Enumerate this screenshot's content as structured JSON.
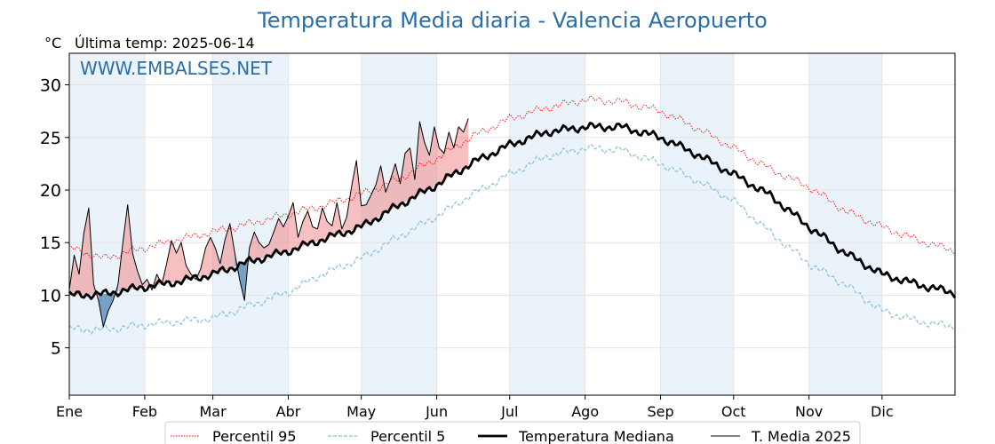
{
  "chart_data": {
    "type": "line",
    "title": "Temperatura Media diaria - Valencia Aeropuerto",
    "ylabel": "°C",
    "subtitle": "Última temp: 2025-06-14",
    "watermark": "WWW.EMBALSES.NET",
    "xlim": [
      1,
      365
    ],
    "ylim": [
      0.5,
      33
    ],
    "yticks": [
      5,
      10,
      15,
      20,
      25,
      30
    ],
    "grid": true,
    "legend_position": "bottom-center",
    "months": [
      "Ene",
      "Feb",
      "Mar",
      "Abr",
      "May",
      "Jun",
      "Jul",
      "Ago",
      "Sep",
      "Oct",
      "Nov",
      "Dic"
    ],
    "month_start_days": [
      1,
      32,
      60,
      91,
      121,
      152,
      182,
      213,
      244,
      274,
      305,
      335
    ],
    "colors": {
      "p95": "#ff0000",
      "p5": "#87bfdc",
      "median": "#000000",
      "media2025": "#000000",
      "above_fill": "#f08080",
      "below_fill": "#4f83b1",
      "band": "#eaf2fa",
      "title": "#2b6ea6"
    },
    "series": [
      {
        "name": "Percentil 95",
        "style": "dotted",
        "days": [
          1,
          15,
          32,
          46,
          60,
          75,
          91,
          105,
          121,
          136,
          152,
          166,
          182,
          197,
          213,
          228,
          244,
          258,
          274,
          289,
          305,
          320,
          335,
          350,
          365
        ],
        "values": [
          14.5,
          13.5,
          14.5,
          15.3,
          16.0,
          16.8,
          17.7,
          18.5,
          19.6,
          21.0,
          23.0,
          25.0,
          26.8,
          27.8,
          28.6,
          28.4,
          27.5,
          26.0,
          24.0,
          22.0,
          20.3,
          18.0,
          16.5,
          15.2,
          14.2
        ]
      },
      {
        "name": "Percentil 5",
        "style": "dashed",
        "days": [
          1,
          15,
          32,
          46,
          60,
          75,
          91,
          105,
          121,
          136,
          152,
          166,
          182,
          197,
          213,
          228,
          244,
          258,
          274,
          289,
          305,
          320,
          335,
          350,
          365
        ],
        "values": [
          6.8,
          6.7,
          7.2,
          7.5,
          7.8,
          9.0,
          10.3,
          12.0,
          13.5,
          15.5,
          17.5,
          19.5,
          21.5,
          23.2,
          24.0,
          23.8,
          22.5,
          21.0,
          19.0,
          16.0,
          13.0,
          11.0,
          8.5,
          7.5,
          7.0
        ]
      },
      {
        "name": "Temperatura Mediana",
        "style": "solid-thick",
        "days": [
          1,
          15,
          32,
          46,
          60,
          75,
          91,
          105,
          121,
          136,
          152,
          166,
          182,
          197,
          213,
          228,
          244,
          258,
          274,
          289,
          305,
          320,
          335,
          350,
          365
        ],
        "values": [
          10.0,
          10.1,
          10.8,
          11.3,
          12.0,
          13.2,
          14.2,
          15.3,
          16.5,
          18.5,
          20.5,
          22.5,
          24.3,
          25.5,
          26.0,
          26.0,
          25.0,
          23.5,
          21.5,
          19.5,
          16.5,
          14.0,
          12.0,
          11.0,
          10.2
        ]
      },
      {
        "name": "T. Media 2025",
        "style": "solid-thin",
        "days": [
          1,
          3,
          5,
          7,
          9,
          11,
          13,
          15,
          17,
          19,
          21,
          23,
          25,
          27,
          29,
          31,
          33,
          35,
          37,
          39,
          41,
          43,
          45,
          47,
          49,
          51,
          53,
          55,
          57,
          59,
          61,
          63,
          65,
          67,
          69,
          71,
          73,
          75,
          77,
          79,
          81,
          83,
          85,
          87,
          89,
          91,
          93,
          95,
          97,
          99,
          101,
          103,
          105,
          107,
          109,
          111,
          113,
          115,
          117,
          119,
          121,
          123,
          125,
          127,
          129,
          131,
          133,
          135,
          137,
          139,
          141,
          143,
          145,
          147,
          149,
          151,
          153,
          155,
          157,
          159,
          161,
          163,
          165
        ],
        "values": [
          10.5,
          13.8,
          12.0,
          15.9,
          18.3,
          11.0,
          9.5,
          7.0,
          8.5,
          9.5,
          11.0,
          15.0,
          18.6,
          14.0,
          12.3,
          11.0,
          11.5,
          10.5,
          12.0,
          11.0,
          13.0,
          15.2,
          14.0,
          15.0,
          12.8,
          12.0,
          11.5,
          12.5,
          14.5,
          15.5,
          14.5,
          13.0,
          15.3,
          16.8,
          14.0,
          11.5,
          9.5,
          14.5,
          16.0,
          15.0,
          14.5,
          14.8,
          16.0,
          17.3,
          16.5,
          17.5,
          18.8,
          15.5,
          17.0,
          18.0,
          16.5,
          16.3,
          18.3,
          17.0,
          16.6,
          18.8,
          16.3,
          17.4,
          20.3,
          22.8,
          18.5,
          18.6,
          19.5,
          20.5,
          22.3,
          19.8,
          21.0,
          22.5,
          20.6,
          23.5,
          24.0,
          21.0,
          26.5,
          24.5,
          23.3,
          26.0,
          24.0,
          23.5,
          25.5,
          24.0,
          26.0,
          25.5,
          26.8
        ]
      }
    ]
  }
}
